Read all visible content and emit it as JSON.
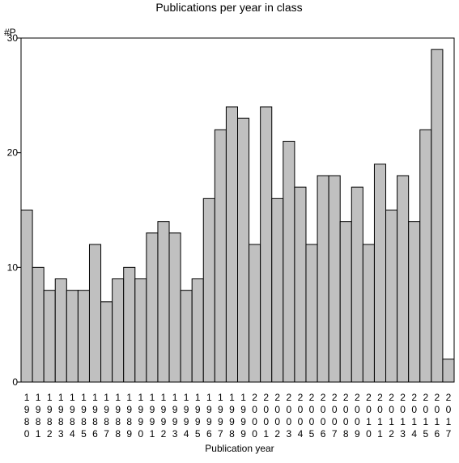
{
  "chart_data": {
    "type": "bar",
    "title": "Publications per year in class",
    "ylabel": "#P",
    "xlabel": "Publication year",
    "ylim": [
      0,
      30
    ],
    "yticks": [
      0,
      10,
      20,
      30
    ],
    "grid": false,
    "bar_color": "#c0c0c0",
    "categories": [
      "1980",
      "1981",
      "1982",
      "1983",
      "1984",
      "1985",
      "1986",
      "1987",
      "1988",
      "1989",
      "1990",
      "1991",
      "1992",
      "1993",
      "1994",
      "1995",
      "1996",
      "1997",
      "1998",
      "1999",
      "2000",
      "2001",
      "2002",
      "2003",
      "2004",
      "2005",
      "2006",
      "2007",
      "2008",
      "2009",
      "2010",
      "2011",
      "2012",
      "2013",
      "2014",
      "2015",
      "2016",
      "2017"
    ],
    "values": [
      15,
      10,
      8,
      9,
      8,
      8,
      12,
      7,
      9,
      10,
      9,
      13,
      14,
      13,
      8,
      9,
      16,
      22,
      24,
      23,
      12,
      24,
      16,
      21,
      17,
      12,
      18,
      18,
      14,
      17,
      12,
      19,
      15,
      18,
      14,
      22,
      29,
      2
    ]
  }
}
